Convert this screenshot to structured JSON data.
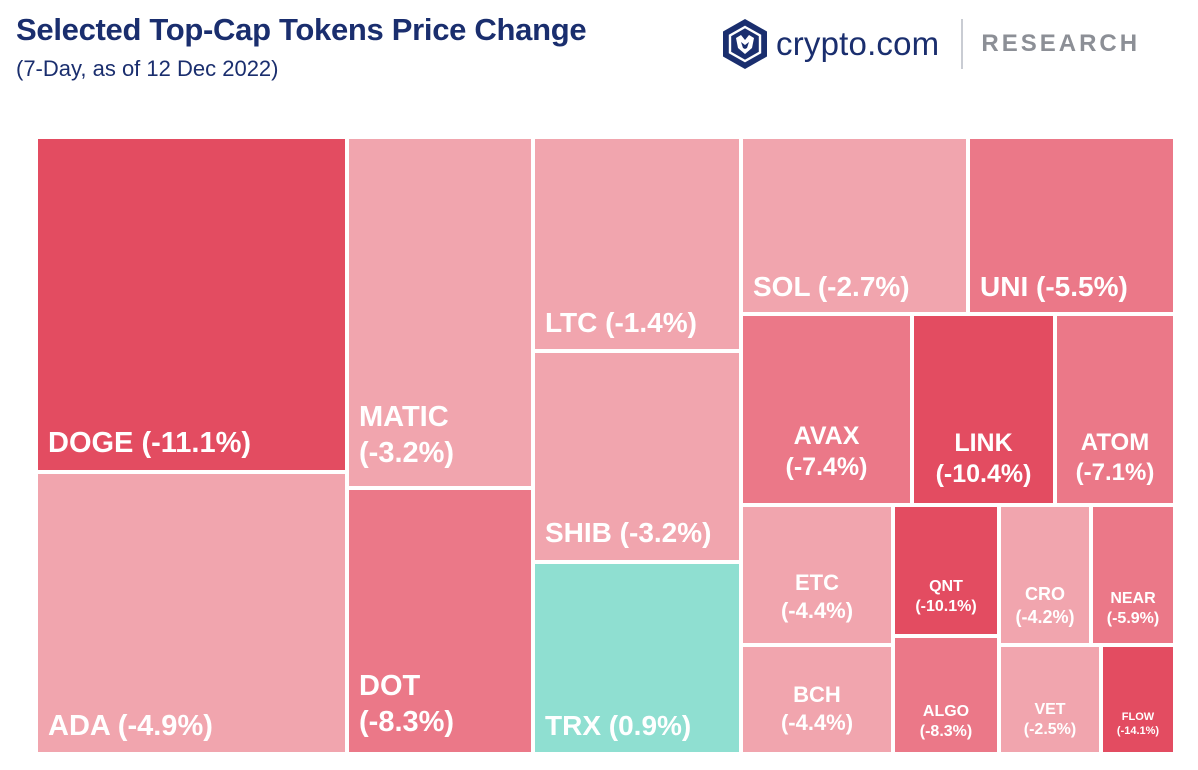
{
  "header": {
    "title": "Selected Top-Cap Tokens Price Change",
    "subtitle": "(7-Day, as of 12 Dec 2022)"
  },
  "brand": {
    "name": "crypto.com",
    "tag": "RESEARCH",
    "icon": "crypto-com-lion-shield-icon",
    "color": "#1a2e6e"
  },
  "colors": {
    "strong_negative": "#e34c61",
    "medium_negative": "#eb7888",
    "light_negative": "#f1a5ae",
    "positive": "#8fdfd1"
  },
  "chart_data": {
    "type": "treemap",
    "title": "Selected Top-Cap Tokens Price Change",
    "subtitle": "(7-Day, as of 12 Dec 2022)",
    "unit": "%",
    "tiles": [
      {
        "id": "doge",
        "token": "DOGE",
        "change": -11.1,
        "label": "DOGE (-11.1%)",
        "lines": [
          "DOGE (-11.1%)"
        ]
      },
      {
        "id": "ada",
        "token": "ADA",
        "change": -4.9,
        "label": "ADA (-4.9%)",
        "lines": [
          "ADA (-4.9%)"
        ]
      },
      {
        "id": "matic",
        "token": "MATIC",
        "change": -3.2,
        "label": "MATIC (-3.2%)",
        "lines": [
          "MATIC",
          "(-3.2%)"
        ]
      },
      {
        "id": "dot",
        "token": "DOT",
        "change": -8.3,
        "label": "DOT (-8.3%)",
        "lines": [
          "DOT",
          "(-8.3%)"
        ]
      },
      {
        "id": "ltc",
        "token": "LTC",
        "change": -1.4,
        "label": "LTC (-1.4%)",
        "lines": [
          "LTC (-1.4%)"
        ]
      },
      {
        "id": "shib",
        "token": "SHIB",
        "change": -3.2,
        "label": "SHIB (-3.2%)",
        "lines": [
          "SHIB (-3.2%)"
        ]
      },
      {
        "id": "trx",
        "token": "TRX",
        "change": 0.9,
        "label": "TRX (0.9%)",
        "lines": [
          "TRX (0.9%)"
        ]
      },
      {
        "id": "sol",
        "token": "SOL",
        "change": -2.7,
        "label": "SOL (-2.7%)",
        "lines": [
          "SOL (-2.7%)"
        ]
      },
      {
        "id": "uni",
        "token": "UNI",
        "change": -5.5,
        "label": "UNI (-5.5%)",
        "lines": [
          "UNI (-5.5%)"
        ]
      },
      {
        "id": "avax",
        "token": "AVAX",
        "change": -7.4,
        "label": "AVAX (-7.4%)",
        "lines": [
          "AVAX",
          "(-7.4%)"
        ]
      },
      {
        "id": "link",
        "token": "LINK",
        "change": -10.4,
        "label": "LINK (-10.4%)",
        "lines": [
          "LINK",
          "(-10.4%)"
        ]
      },
      {
        "id": "atom",
        "token": "ATOM",
        "change": -7.1,
        "label": "ATOM (-7.1%)",
        "lines": [
          "ATOM",
          "(-7.1%)"
        ]
      },
      {
        "id": "etc",
        "token": "ETC",
        "change": -4.4,
        "label": "ETC (-4.4%)",
        "lines": [
          "ETC",
          "(-4.4%)"
        ]
      },
      {
        "id": "qnt",
        "token": "QNT",
        "change": -10.1,
        "label": "QNT (-10.1%)",
        "lines": [
          "QNT",
          "(-10.1%)"
        ]
      },
      {
        "id": "cro",
        "token": "CRO",
        "change": -4.2,
        "label": "CRO (-4.2%)",
        "lines": [
          "CRO",
          "(-4.2%)"
        ]
      },
      {
        "id": "near",
        "token": "NEAR",
        "change": -5.9,
        "label": "NEAR (-5.9%)",
        "lines": [
          "NEAR",
          "(-5.9%)"
        ]
      },
      {
        "id": "bch",
        "token": "BCH",
        "change": -4.4,
        "label": "BCH (-4.4%)",
        "lines": [
          "BCH",
          "(-4.4%)"
        ]
      },
      {
        "id": "algo",
        "token": "ALGO",
        "change": -8.3,
        "label": "ALGO (-8.3%)",
        "lines": [
          "ALGO",
          "(-8.3%)"
        ]
      },
      {
        "id": "vet",
        "token": "VET",
        "change": -2.5,
        "label": "VET (-2.5%)",
        "lines": [
          "VET",
          "(-2.5%)"
        ]
      },
      {
        "id": "flow",
        "token": "FLOW",
        "change": -14.1,
        "label": "FLOW (-14.1%)",
        "lines": [
          "FLOW",
          "(-14.1%)"
        ]
      }
    ]
  }
}
